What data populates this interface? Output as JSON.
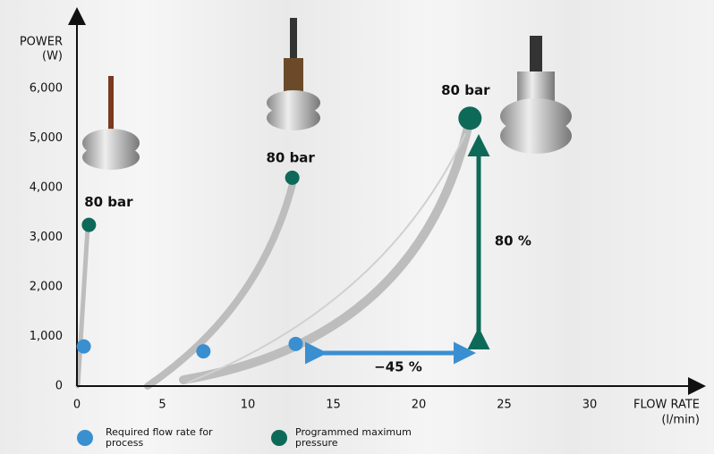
{
  "chart_data": {
    "type": "scatter",
    "y_label": [
      "POWER",
      "(W)"
    ],
    "x_label": [
      "FLOW RATE",
      "(l/min)"
    ],
    "xlim": [
      0,
      36
    ],
    "ylim": [
      0,
      7500
    ],
    "xticks": [
      0,
      5,
      10,
      15,
      20,
      25,
      30
    ],
    "yticks": [
      0,
      {
        "value": 1000,
        "label": "1,000"
      },
      {
        "value": 2000,
        "label": "2,000"
      },
      {
        "value": 3000,
        "label": "3,000"
      },
      {
        "value": 4000,
        "label": "4,000"
      },
      {
        "value": 5000,
        "label": "5,000"
      },
      {
        "value": 6000,
        "label": "6,000"
      }
    ],
    "series": [
      {
        "name": "Required flow rate for process",
        "color": "#3a8fd0",
        "x": [
          0.4,
          7.4,
          12.8
        ],
        "values": [
          800,
          700,
          850
        ]
      },
      {
        "name": "Programmed maximum pressure",
        "color": "#0e6a58",
        "x": [
          0.7,
          12.6,
          23
        ],
        "values": [
          3250,
          4200,
          5400
        ]
      }
    ],
    "annotations": [
      "80 bar",
      "80 bar",
      "80 bar",
      "80 %",
      "−45 %"
    ]
  }
}
